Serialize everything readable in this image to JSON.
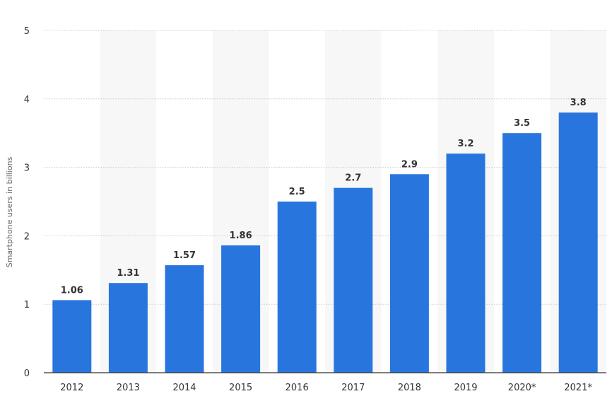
{
  "chart_data": {
    "type": "bar",
    "categories": [
      "2012",
      "2013",
      "2014",
      "2015",
      "2016",
      "2017",
      "2018",
      "2019",
      "2020*",
      "2021*"
    ],
    "values": [
      1.06,
      1.31,
      1.57,
      1.86,
      2.5,
      2.7,
      2.9,
      3.2,
      3.5,
      3.8
    ],
    "data_labels": [
      "1.06",
      "1.31",
      "1.57",
      "1.86",
      "2.5",
      "2.7",
      "2.9",
      "3.2",
      "3.5",
      "3.8"
    ],
    "ylabel": "Smartphone users in billions",
    "xlabel": "",
    "ylim": [
      0,
      5
    ],
    "yticks": [
      "0",
      "1",
      "2",
      "3",
      "4",
      "5"
    ],
    "grid": true,
    "bar_color": "#2876dd",
    "band_color": "#f7f7f7"
  }
}
